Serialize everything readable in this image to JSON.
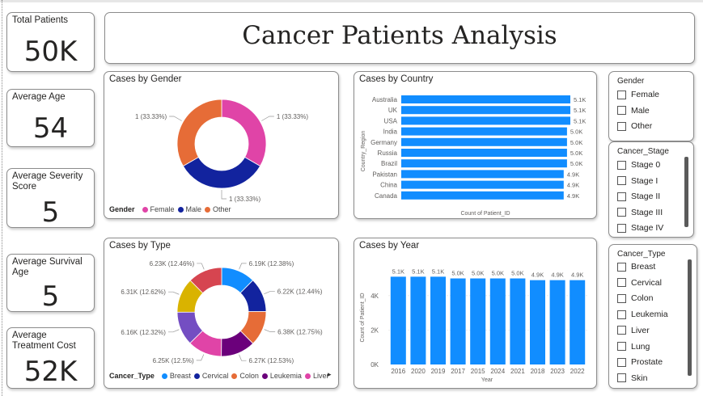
{
  "kpis": {
    "total_patients": {
      "label": "Total Patients",
      "value": "50K"
    },
    "average_age": {
      "label": "Average Age",
      "value": "54"
    },
    "average_severity": {
      "label": "Average Severity Score",
      "value": "5"
    },
    "average_survival": {
      "label": "Average Survival Age",
      "value": "5"
    },
    "average_cost": {
      "label": "Average Treatment Cost",
      "value": "52K"
    }
  },
  "dashboard_title": "Cancer Patients Analysis",
  "visuals": {
    "gender": {
      "title": "Cases by Gender",
      "legend_title": "Gender"
    },
    "country": {
      "title": "Cases by Country"
    },
    "type": {
      "title": "Cases by Type",
      "legend_title": "Cancer_Type",
      "legend_more_glyph": "▸"
    },
    "year": {
      "title": "Cases by Year"
    }
  },
  "slicers": {
    "gender": {
      "title": "Gender",
      "options": [
        "Female",
        "Male",
        "Other"
      ]
    },
    "stage": {
      "title": "Cancer_Stage",
      "options": [
        "Stage 0",
        "Stage I",
        "Stage II",
        "Stage III",
        "Stage IV"
      ]
    },
    "type": {
      "title": "Cancer_Type",
      "options": [
        "Breast",
        "Cervical",
        "Colon",
        "Leukemia",
        "Liver",
        "Lung",
        "Prostate",
        "Skin"
      ]
    }
  },
  "chart_data": [
    {
      "id": "gender",
      "type": "pie",
      "donut": true,
      "legend_title": "Gender",
      "legend_position": "bottom-left",
      "slices": [
        {
          "name": "Female",
          "value": 1,
          "label": "1 (33.33%)",
          "color": "#E044A7"
        },
        {
          "name": "Male",
          "value": 1,
          "label": "1 (33.33%)",
          "color": "#12239E"
        },
        {
          "name": "Other",
          "value": 1,
          "label": "1 (33.33%)",
          "color": "#E66C37"
        }
      ]
    },
    {
      "id": "country",
      "type": "bar",
      "orientation": "horizontal",
      "xlabel": "Count of Patient_ID",
      "ylabel": "Country_Region",
      "color": "#118DFF",
      "categories": [
        "Australia",
        "UK",
        "USA",
        "India",
        "Germany",
        "Russia",
        "Brazil",
        "Pakistan",
        "China",
        "Canada"
      ],
      "values": [
        5100,
        5100,
        5100,
        5000,
        5000,
        5000,
        5000,
        4900,
        4900,
        4900
      ],
      "value_labels": [
        "5.1K",
        "5.1K",
        "5.1K",
        "5.0K",
        "5.0K",
        "5.0K",
        "5.0K",
        "4.9K",
        "4.9K",
        "4.9K"
      ]
    },
    {
      "id": "type",
      "type": "pie",
      "donut": true,
      "legend_title": "Cancer_Type",
      "legend_position": "bottom-left",
      "slices": [
        {
          "name": "Breast",
          "value": 6190,
          "label": "6.19K (12.38%)",
          "color": "#118DFF"
        },
        {
          "name": "Cervical",
          "value": 6220,
          "label": "6.22K (12.44%)",
          "color": "#12239E"
        },
        {
          "name": "Colon",
          "value": 6380,
          "label": "6.38K (12.75%)",
          "color": "#E66C37"
        },
        {
          "name": "Leukemia",
          "value": 6270,
          "label": "6.27K (12.53%)",
          "color": "#6B007B"
        },
        {
          "name": "Liver",
          "value": 6250,
          "label": "6.25K (12.5%)",
          "color": "#E044A7"
        },
        {
          "name": "Lung",
          "value": 6160,
          "label": "6.16K (12.32%)",
          "color": "#744EC2"
        },
        {
          "name": "Prostate",
          "value": 6310,
          "label": "6.31K (12.62%)",
          "color": "#D9B300"
        },
        {
          "name": "Skin",
          "value": 6230,
          "label": "6.23K (12.46%)",
          "color": "#D64550"
        }
      ],
      "legend_visible": [
        "Breast",
        "Cervical",
        "Colon",
        "Leukemia",
        "Liver"
      ]
    },
    {
      "id": "year",
      "type": "bar",
      "orientation": "vertical",
      "xlabel": "Year",
      "ylabel": "Count of Patient_ID",
      "color": "#118DFF",
      "grid": true,
      "ylim": [
        0,
        5000
      ],
      "yticks": [
        0,
        2000,
        4000
      ],
      "ytick_labels": [
        "0K",
        "2K",
        "4K"
      ],
      "categories": [
        "2016",
        "2020",
        "2019",
        "2017",
        "2015",
        "2024",
        "2021",
        "2018",
        "2023",
        "2022"
      ],
      "values": [
        5100,
        5100,
        5100,
        5000,
        5000,
        5000,
        5000,
        4900,
        4900,
        4900
      ],
      "value_labels": [
        "5.1K",
        "5.1K",
        "5.1K",
        "5.0K",
        "5.0K",
        "5.0K",
        "5.0K",
        "4.9K",
        "4.9K",
        "4.9K"
      ]
    }
  ]
}
